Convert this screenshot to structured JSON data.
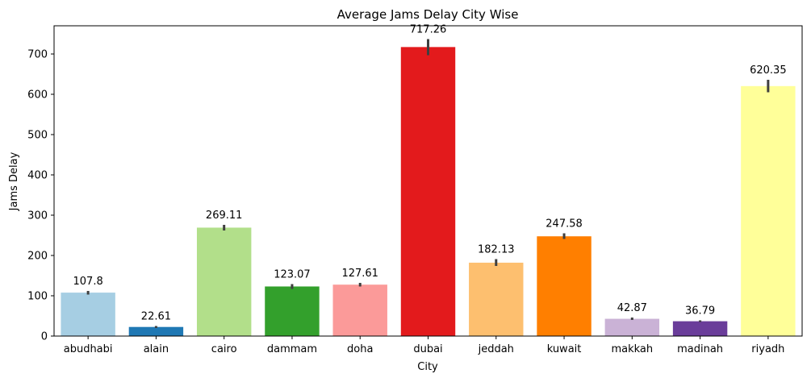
{
  "chart_data": {
    "type": "bar",
    "title": "Average Jams Delay City Wise",
    "xlabel": "City",
    "ylabel": "Jams Delay",
    "ylim": [
      0,
      770
    ],
    "yticks": [
      0,
      100,
      200,
      300,
      400,
      500,
      600,
      700
    ],
    "grid": false,
    "categories": [
      "abudhabi",
      "alain",
      "cairo",
      "dammam",
      "doha",
      "dubai",
      "jeddah",
      "kuwait",
      "makkah",
      "madinah",
      "riyadh"
    ],
    "values": [
      107.8,
      22.61,
      269.11,
      123.07,
      127.61,
      717.26,
      182.13,
      247.58,
      42.87,
      36.79,
      620.35
    ],
    "value_labels": [
      "107.8",
      "22.61",
      "269.11",
      "123.07",
      "127.61",
      "717.26",
      "182.13",
      "247.58",
      "42.87",
      "36.79",
      "620.35"
    ],
    "error_bars": [
      [
        103,
        112
      ],
      [
        20,
        25
      ],
      [
        262,
        276
      ],
      [
        117,
        129
      ],
      [
        123,
        132
      ],
      [
        697,
        737
      ],
      [
        174,
        191
      ],
      [
        241,
        255
      ],
      [
        40,
        46
      ],
      [
        35,
        39
      ],
      [
        605,
        636
      ]
    ],
    "colors": [
      "#a6cee3",
      "#1f78b4",
      "#b2df8a",
      "#33a02c",
      "#fb9a99",
      "#e31a1c",
      "#fdbf6f",
      "#ff7f00",
      "#cab2d6",
      "#6a3d9a",
      "#ffff99"
    ],
    "errorbar_color": "#3f3f3f"
  }
}
